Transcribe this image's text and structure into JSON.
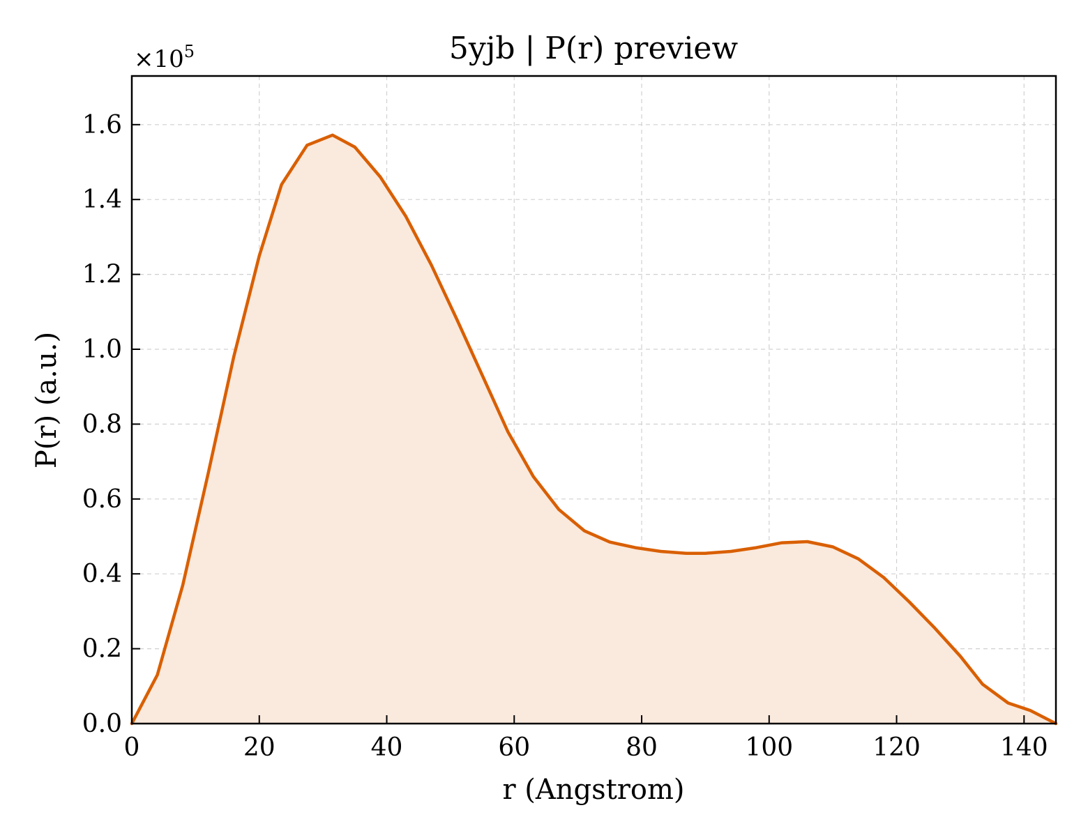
{
  "chart_data": {
    "type": "area",
    "title": "5yjb | P(r) preview",
    "xlabel": "r (Angstrom)",
    "ylabel": "P(r) (a.u.)",
    "y_scale_label": "×10",
    "y_scale_exponent": "5",
    "xlim": [
      0,
      145
    ],
    "ylim": [
      0,
      1.73
    ],
    "x_ticks": [
      0,
      20,
      40,
      60,
      80,
      100,
      120,
      140
    ],
    "x_tick_labels": [
      "0",
      "20",
      "40",
      "60",
      "80",
      "100",
      "120",
      "140"
    ],
    "y_ticks": [
      0,
      0.2,
      0.4,
      0.6,
      0.8,
      1.0,
      1.2,
      1.4,
      1.6
    ],
    "y_tick_labels": [
      "0.0",
      "0.2",
      "0.4",
      "0.6",
      "0.8",
      "1.0",
      "1.2",
      "1.4",
      "1.6"
    ],
    "grid": true,
    "legend": "none",
    "series": [
      {
        "color": "#d95f02",
        "fill_color": "#fae9dd",
        "x": [
          0,
          4,
          8,
          12,
          16,
          20,
          23.5,
          27.5,
          31.5,
          35,
          39,
          43,
          47,
          51,
          55,
          59,
          63,
          67,
          71,
          75,
          79,
          83,
          87,
          90,
          94,
          98,
          102,
          106,
          110,
          114,
          118,
          122,
          126,
          130,
          133.5,
          137.5,
          141,
          145
        ],
        "y": [
          0.0,
          0.13,
          0.37,
          0.67,
          0.98,
          1.25,
          1.44,
          1.545,
          1.572,
          1.54,
          1.46,
          1.355,
          1.225,
          1.08,
          0.93,
          0.78,
          0.66,
          0.572,
          0.515,
          0.485,
          0.47,
          0.46,
          0.455,
          0.455,
          0.46,
          0.47,
          0.483,
          0.486,
          0.472,
          0.44,
          0.39,
          0.325,
          0.255,
          0.18,
          0.105,
          0.055,
          0.035,
          0.0
        ]
      }
    ]
  }
}
